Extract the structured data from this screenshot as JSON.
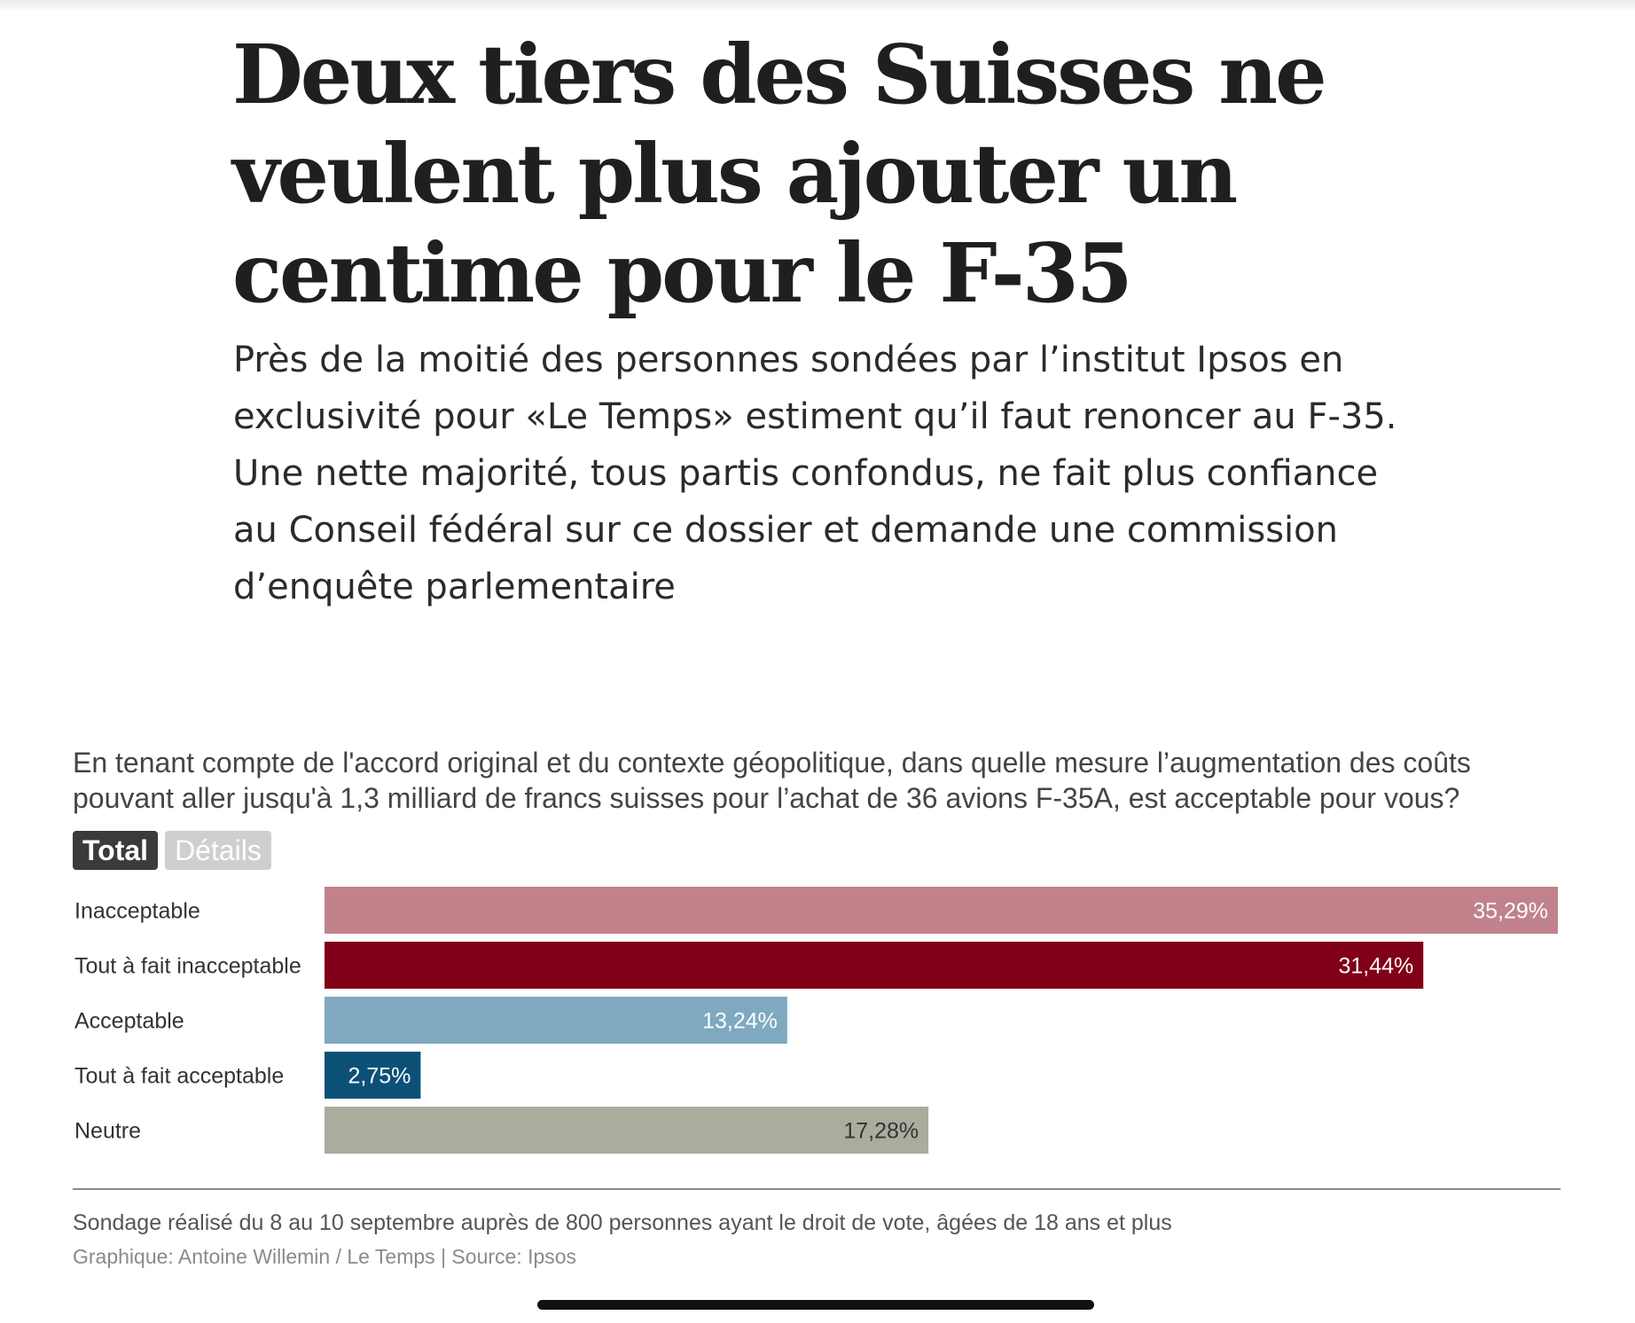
{
  "headline": {
    "lines": [
      "Deux tiers des Suisses ne",
      "veulent plus ajouter un",
      "centime pour le F-35"
    ]
  },
  "lead": {
    "lines": [
      "Près de la moitié des personnes sondées par l’institut Ipsos en",
      "exclusivité pour «Le Temps» estiment qu’il faut renoncer au F-35.",
      "Une nette majorité, tous partis confondus, ne fait plus confiance",
      "au Conseil fédéral sur ce dossier et demande une commission",
      "d’enquête parlementaire"
    ]
  },
  "question": {
    "lines": [
      "En tenant compte de l'accord original et du contexte géopolitique, dans quelle mesure l’augmentation des coûts",
      "pouvant aller jusqu'à 1,3 milliard de francs suisses pour l’achat de 36 avions F-35A, est acceptable pour vous?"
    ]
  },
  "tabs": {
    "total": "Total",
    "details": "Détails",
    "selected": "Total"
  },
  "chart_data": {
    "type": "bar",
    "orientation": "horizontal",
    "categories": [
      "Inacceptable",
      "Tout à fait inacceptable",
      "Acceptable",
      "Tout à fait acceptable",
      "Neutre"
    ],
    "values": [
      35.29,
      31.44,
      13.24,
      2.75,
      17.28
    ],
    "value_labels": [
      "35,29%",
      "31,44%",
      "13,24%",
      "2,75%",
      "17,28%"
    ],
    "colors": [
      "#c1828b",
      "#800018",
      "#7ea9c0",
      "#0b5177",
      "#acac9e"
    ],
    "label_colors": [
      "#ffffff",
      "#ffffff",
      "#ffffff",
      "#ffffff",
      "#333333"
    ],
    "xlim": [
      0,
      35.29
    ],
    "grid": false,
    "legend": "none"
  },
  "footer": {
    "note": "Sondage réalisé du 8 au 10 septembre auprès de 800 personnes ayant le droit de vote, âgées de 18 ans et plus",
    "credit": "Graphique: Antoine Willemin / Le Temps | Source: Ipsos"
  }
}
